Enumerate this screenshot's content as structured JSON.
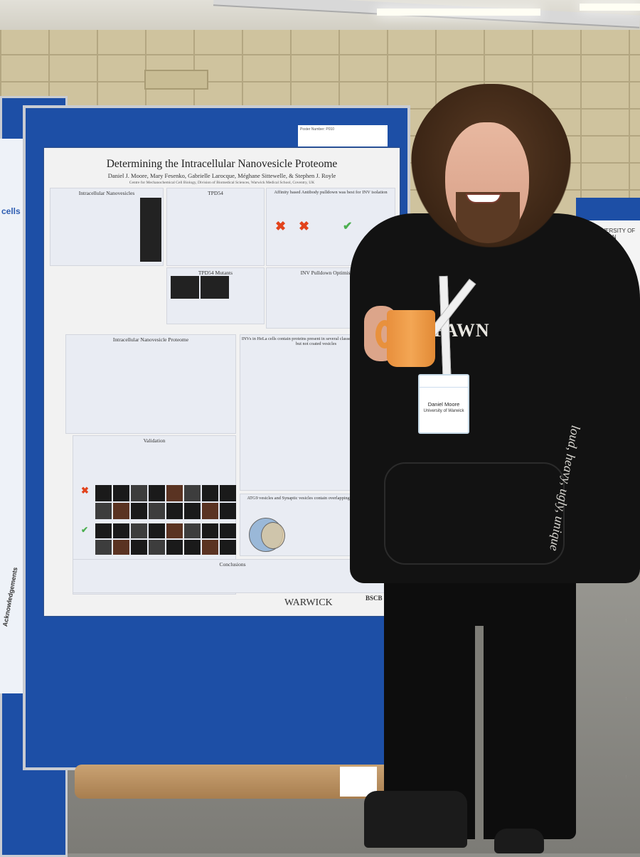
{
  "poster": {
    "number_label": "Poster Number: P010",
    "title": "Determining the Intracellular Nanovesicle Proteome",
    "authors": "Daniel J. Moore, Mary Fesenko, Gabrielle Larocque, Méghane Sittewelle, & Stephen J. Royle",
    "affiliation": "Centre for Mechanochemical Cell Biology, Division of Biomedical Sciences, Warwick Medical School, Coventry, UK",
    "sections": {
      "intracellular_nanovesicles": "Intracellular Nanovesicles",
      "tpd54": "TPD54",
      "affinity": "Affinity based Antibody pulldown was best for INV isolation",
      "tpd54_mutants": "TPD54 Mutants",
      "inv_pulldown": "INV Pulldown Optimisation",
      "proteome": "Intracellular Nanovesicle Proteome",
      "invs_hela": "INVs in HeLa cells contain proteins present in several classes of transport vesicles, but not coated vesicles",
      "validation": "Validation",
      "atg9": "ATG9 vesicles and Synaptic vesicles contain overlapping set of INV proteins",
      "conclusions": "Conclusions"
    },
    "footer_logos": [
      "WARWICK",
      "BSCB"
    ]
  },
  "badge": {
    "name": "Daniel Moore",
    "organization": "University of Warwick"
  },
  "hoodie_print": "FAWN",
  "sleeve_print": "loud, heavy, ugly, unique",
  "left_poster_text": [
    "cells",
    "Acknowledgements"
  ],
  "right_poster_text": "UNIVERSITY OF LINCOLN"
}
